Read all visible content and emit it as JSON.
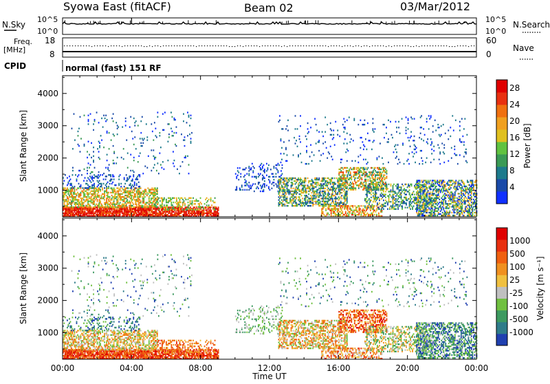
{
  "header": {
    "station": "Syowa East (fitACF)",
    "beam": "Beam 02",
    "date": "03/Mar/2012"
  },
  "status_panels": {
    "nsky_label": "N.Sky",
    "nsky_ticks": [
      "10^5",
      "10^0"
    ],
    "nsearch_label": "N.Search",
    "nsearch_ticks": [
      "10^5",
      "10^0"
    ],
    "freq_label": "Freq.",
    "freq_unit": "[MHz]",
    "freq_ticks": [
      "18",
      "8"
    ],
    "nave_label": "Nave",
    "nave_ticks": [
      "60",
      "0"
    ],
    "cpid_label": "CPID",
    "cpid_value": "normal (fast) 151 RF"
  },
  "chart_data": [
    {
      "type": "heatmap",
      "name": "power-panel",
      "ylabel": "Slant Range [km]",
      "ylim": [
        180,
        4550
      ],
      "yticks": [
        "1000",
        "2000",
        "3000",
        "4000"
      ],
      "yticks_values": [
        1000,
        2000,
        3000,
        4000
      ],
      "xlim": [
        0,
        24
      ],
      "colorbar": {
        "label": "Power [dB]",
        "ticks": [
          "4",
          "8",
          "12",
          "16",
          "20",
          "24",
          "28"
        ],
        "tick_values": [
          4,
          8,
          12,
          16,
          20,
          24,
          28
        ],
        "range": [
          0,
          30
        ],
        "colors": [
          "#1030ff",
          "#1a4aa8",
          "#1d7a8c",
          "#3a9a55",
          "#60c240",
          "#e0c020",
          "#f0a020",
          "#f07010",
          "#e83010",
          "#e00000"
        ]
      }
    },
    {
      "type": "heatmap",
      "name": "velocity-panel",
      "ylabel": "Slant Range [km]",
      "ylim": [
        180,
        4550
      ],
      "yticks": [
        "1000",
        "2000",
        "3000",
        "4000"
      ],
      "yticks_values": [
        1000,
        2000,
        3000,
        4000
      ],
      "xlim": [
        0,
        24
      ],
      "colorbar": {
        "label": "Velocity [m s⁻¹]",
        "ticks": [
          "1000",
          "500",
          "100",
          "25",
          "-25",
          "-100",
          "-500",
          "-1000"
        ],
        "colors": [
          "#2040b0",
          "#2f7c8a",
          "#3d9a60",
          "#70c040",
          "#c0c0c0",
          "#f0c040",
          "#f09020",
          "#f06010",
          "#e83010",
          "#e00000"
        ]
      }
    }
  ],
  "x_axis": {
    "ticks": [
      "00:00",
      "04:00",
      "08:00",
      "12:00",
      "16:00",
      "20:00",
      "00:00"
    ],
    "tick_values": [
      0,
      4,
      8,
      12,
      16,
      20,
      24
    ],
    "label": "Time UT"
  }
}
